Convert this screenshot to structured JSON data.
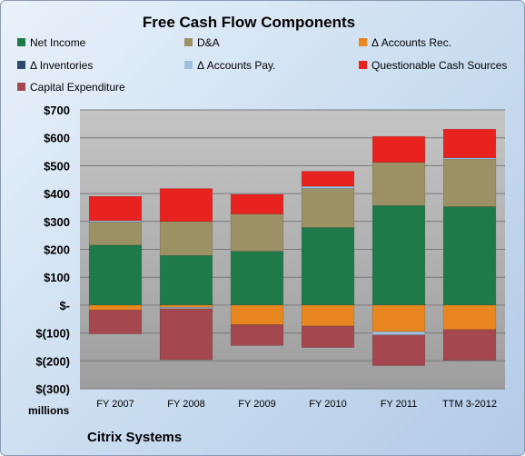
{
  "chart_data": {
    "type": "bar",
    "stacked": true,
    "title": "Free Cash Flow Components",
    "units_label": "millions",
    "company": "Citrix Systems",
    "categories": [
      "FY 2007",
      "FY 2008",
      "FY 2009",
      "FY 2010",
      "FY 2011",
      "TTM 3-2012"
    ],
    "ylim": [
      -300,
      700
    ],
    "yticks": [
      700,
      600,
      500,
      400,
      300,
      200,
      100,
      0,
      -100,
      -200,
      -300
    ],
    "ytick_labels": [
      "$700",
      "$600",
      "$500",
      "$400",
      "$300",
      "$200",
      "$100",
      "$-",
      "$(100)",
      "$(200)",
      "$(300)"
    ],
    "grid": true,
    "legend_position": "top",
    "series": [
      {
        "name": "Net Income",
        "color": "#1f7a4a",
        "values": [
          215,
          178,
          193,
          278,
          357,
          353
        ]
      },
      {
        "name": "D&A",
        "color": "#9b9164",
        "values": [
          83,
          122,
          134,
          140,
          155,
          170
        ]
      },
      {
        "name": "Δ Accounts Rec.",
        "color": "#e8861f",
        "values": [
          -18,
          -8,
          -70,
          -75,
          -95,
          -88
        ]
      },
      {
        "name": "Δ Inventories",
        "color": "#2e4a6b",
        "values": [
          0,
          0,
          0,
          0,
          0,
          0
        ]
      },
      {
        "name": "Δ Accounts Pay.",
        "color": "#9fc0e0",
        "values": [
          5,
          -5,
          0,
          8,
          -12,
          5
        ]
      },
      {
        "name": "Questionable Cash Sources",
        "color": "#e8221e",
        "values": [
          87,
          118,
          70,
          54,
          93,
          103
        ]
      },
      {
        "name": "Capital Expenditure",
        "color": "#a4474f",
        "values": [
          -85,
          -183,
          -75,
          -77,
          -110,
          -110
        ]
      }
    ]
  }
}
